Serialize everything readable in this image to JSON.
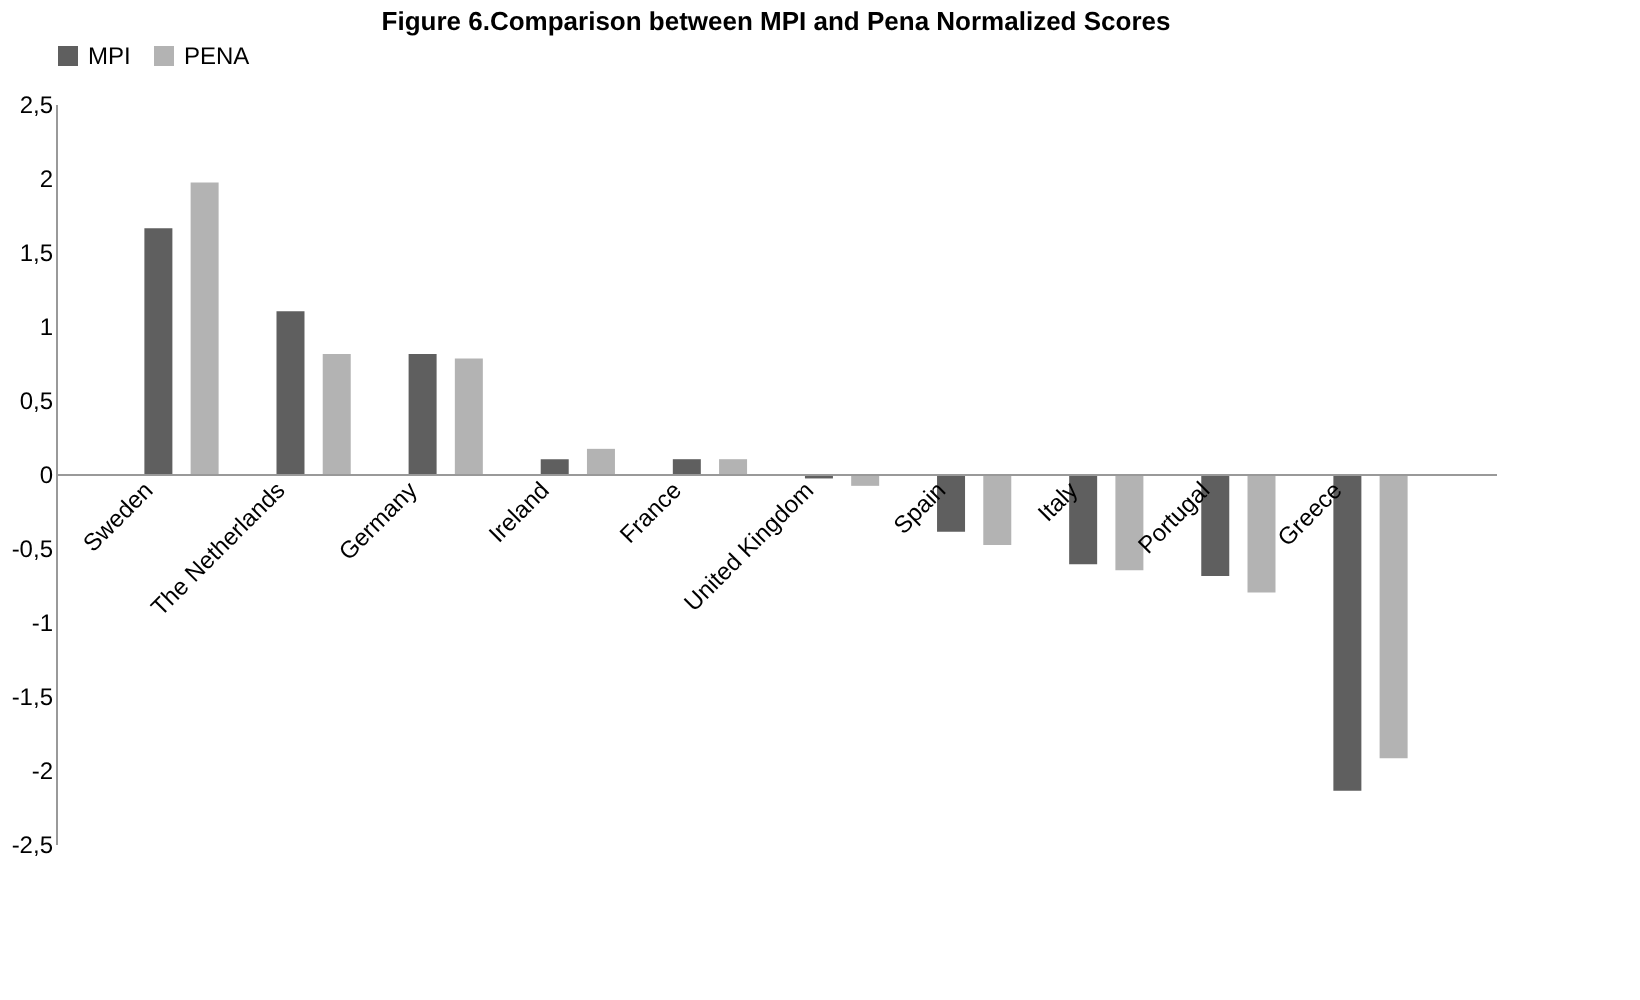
{
  "chart_data": {
    "type": "bar",
    "title": "Figure 6.Comparison between MPI and Pena Normalized Scores",
    "categories": [
      "Sweden",
      "The Netherlands",
      "Germany",
      "Ireland",
      "France",
      "United Kingdom",
      "Spain",
      "Italy",
      "Portugal",
      "Greece"
    ],
    "series": [
      {
        "name": "MPI",
        "color": "#5f5f5f",
        "values": [
          1.66,
          1.1,
          0.81,
          0.1,
          0.1,
          -0.03,
          -0.39,
          -0.61,
          -0.69,
          -2.14
        ]
      },
      {
        "name": "PENA",
        "color": "#b3b3b3",
        "values": [
          1.97,
          0.81,
          0.78,
          0.17,
          0.1,
          -0.08,
          -0.48,
          -0.65,
          -0.8,
          -1.92
        ]
      }
    ],
    "ylim": [
      -2.5,
      2.5
    ],
    "yticks": [
      {
        "value": -2.5,
        "label": "-2,5"
      },
      -2,
      {
        "value": -1.5,
        "label": "-1,5"
      },
      -1,
      {
        "value": -0.5,
        "label": "-0,5"
      },
      0,
      {
        "value": 0.5,
        "label": "0,5"
      },
      1,
      {
        "value": 1.5,
        "label": "1,5"
      },
      2,
      {
        "value": 2.5,
        "label": "2,5"
      }
    ],
    "grid": false,
    "legend": "top"
  }
}
